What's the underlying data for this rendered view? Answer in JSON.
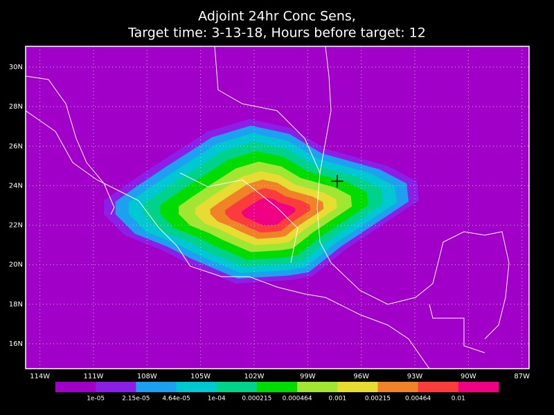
{
  "title": [
    "Adjoint 24hr Conc Sens,",
    "Target time: 3-13-18, Hours before target: 12"
  ],
  "map": {
    "xlim": [
      -114.8,
      -86.6
    ],
    "ylim": [
      14.74,
      31.05
    ],
    "xticks": [
      {
        "value": -114,
        "label": "114W"
      },
      {
        "value": -111,
        "label": "111W"
      },
      {
        "value": -108,
        "label": "108W"
      },
      {
        "value": -105,
        "label": "105W"
      },
      {
        "value": -102,
        "label": "102W"
      },
      {
        "value": -99,
        "label": "99W"
      },
      {
        "value": -96,
        "label": "96W"
      },
      {
        "value": -93,
        "label": "93W"
      },
      {
        "value": -90,
        "label": "90W"
      },
      {
        "value": -87,
        "label": "87W"
      }
    ],
    "yticks": [
      {
        "value": 30,
        "label": "30N"
      },
      {
        "value": 28,
        "label": "28N"
      },
      {
        "value": 26,
        "label": "26N"
      },
      {
        "value": 24,
        "label": "24N"
      },
      {
        "value": 22,
        "label": "22N"
      },
      {
        "value": 20,
        "label": "20N"
      },
      {
        "value": 18,
        "label": "18N"
      },
      {
        "value": 16,
        "label": "16N"
      }
    ],
    "grid": true
  },
  "colorbar": {
    "colors": [
      "#a000c8",
      "#8c1ee6",
      "#1ea0f0",
      "#00c8d2",
      "#00d28c",
      "#00dc00",
      "#a0e632",
      "#e6dc32",
      "#f08228",
      "#fa3c3c",
      "#f00082"
    ],
    "labels": [
      "1e-05",
      "2.15e-05",
      "4.64e-05",
      "1e-04",
      "0.000215",
      "0.000464",
      "0.001",
      "0.00215",
      "0.00464",
      "0.01"
    ]
  }
}
